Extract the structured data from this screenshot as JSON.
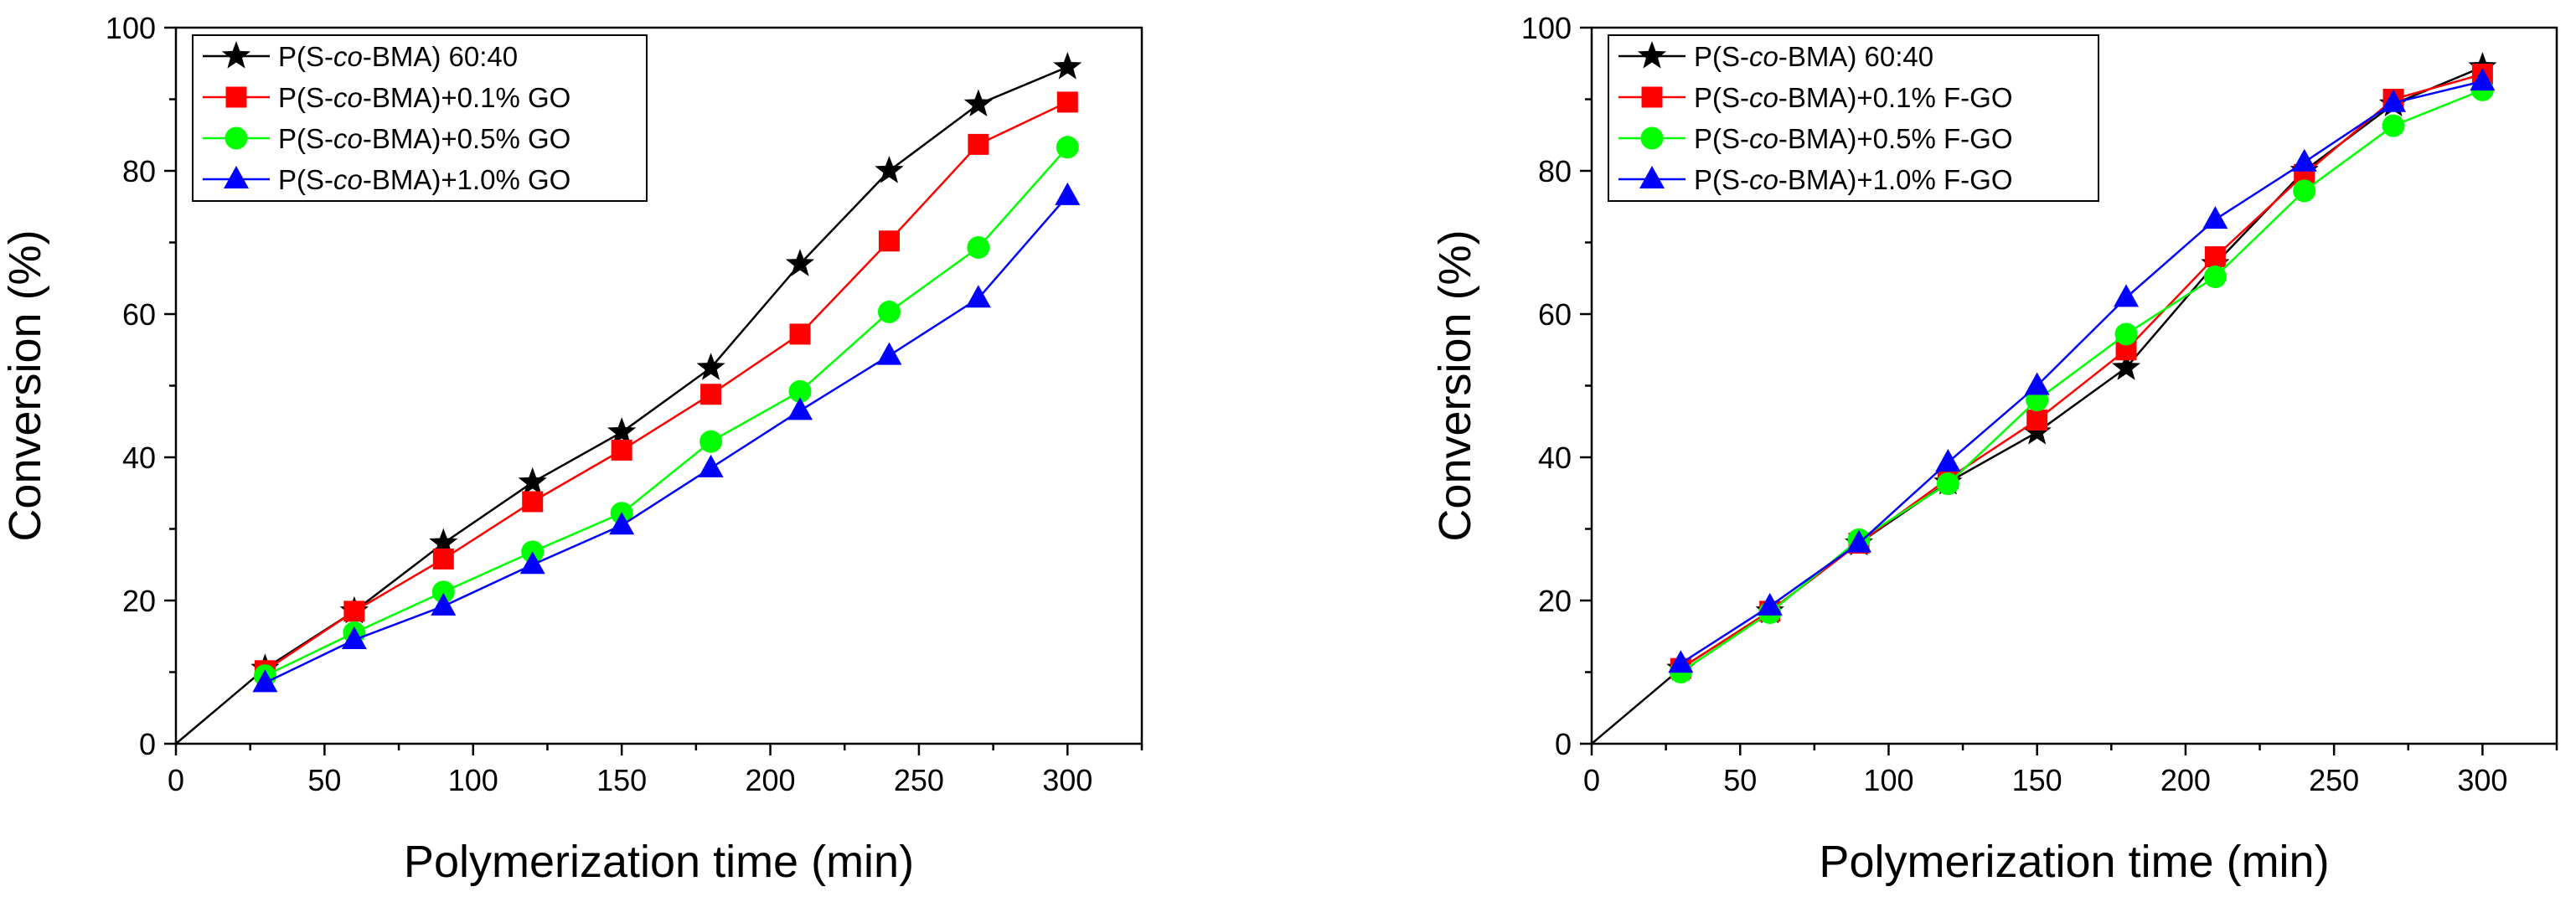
{
  "chart_data": [
    {
      "type": "line",
      "title": "",
      "xlabel": "Polymerization time (min)",
      "ylabel": "Conversion (%)",
      "xlim": [
        0,
        325
      ],
      "ylim": [
        0,
        100
      ],
      "xticks": [
        0,
        50,
        100,
        150,
        200,
        250,
        300
      ],
      "xtick_labels": [
        "0",
        "50",
        "100",
        "150",
        "200",
        "250",
        "300"
      ],
      "yticks": [
        0,
        20,
        40,
        60,
        80,
        100
      ],
      "ytick_labels": [
        "0",
        "20",
        "40",
        "60",
        "80",
        "100"
      ],
      "grid": false,
      "legend_position": "top-left",
      "series": [
        {
          "name": "P(S-co-BMA) 60:40",
          "legend": {
            "prefix": "P(S-",
            "italic": "co",
            "suffix": "-BMA) 60:40"
          },
          "color": "#000000",
          "marker": "star",
          "x": [
            0,
            30,
            60,
            90,
            120,
            150,
            180,
            210,
            240,
            270,
            300
          ],
          "y": [
            0,
            10.5,
            18.5,
            28,
            36.5,
            43.5,
            52.5,
            67,
            80,
            89.3,
            94.5
          ]
        },
        {
          "name": "P(S-co-BMA)+0.1% GO",
          "legend": {
            "prefix": "P(S-",
            "italic": "co",
            "suffix": "-BMA)+0.1% GO"
          },
          "color": "#ff0000",
          "marker": "square",
          "x": [
            30,
            60,
            90,
            120,
            150,
            180,
            210,
            240,
            270,
            300
          ],
          "y": [
            10.2,
            18.5,
            25.8,
            33.8,
            41,
            48.8,
            57.2,
            70.2,
            83.7,
            89.6
          ]
        },
        {
          "name": "P(S-co-BMA)+0.5% GO",
          "legend": {
            "prefix": "P(S-",
            "italic": "co",
            "suffix": "-BMA)+0.5% GO"
          },
          "color": "#00ff00",
          "marker": "circle",
          "x": [
            30,
            60,
            90,
            120,
            150,
            180,
            210,
            240,
            270,
            300
          ],
          "y": [
            9.5,
            15.5,
            21.2,
            26.8,
            32.2,
            42.2,
            49.2,
            60.3,
            69.3,
            83.3
          ]
        },
        {
          "name": "P(S-co-BMA)+1.0% GO",
          "legend": {
            "prefix": "P(S-",
            "italic": "co",
            "suffix": "-BMA)+1.0% GO"
          },
          "color": "#0000ff",
          "marker": "triangle",
          "x": [
            30,
            60,
            90,
            120,
            150,
            180,
            210,
            240,
            270,
            300
          ],
          "y": [
            8.5,
            14.5,
            19.2,
            25,
            30.5,
            38.5,
            46.5,
            54.2,
            62.2,
            76.5
          ]
        }
      ]
    },
    {
      "type": "line",
      "title": "",
      "xlabel": "Polymerization time (min)",
      "ylabel": "Conversion (%)",
      "xlim": [
        0,
        325
      ],
      "ylim": [
        0,
        100
      ],
      "xticks": [
        0,
        50,
        100,
        150,
        200,
        250,
        300
      ],
      "xtick_labels": [
        "0",
        "50",
        "100",
        "150",
        "200",
        "250",
        "300"
      ],
      "yticks": [
        0,
        20,
        40,
        60,
        80,
        100
      ],
      "ytick_labels": [
        "0",
        "20",
        "40",
        "60",
        "80",
        "100"
      ],
      "grid": false,
      "legend_position": "top-left",
      "series": [
        {
          "name": "P(S-co-BMA) 60:40",
          "legend": {
            "prefix": "P(S-",
            "italic": "co",
            "suffix": "-BMA) 60:40"
          },
          "color": "#000000",
          "marker": "star",
          "x": [
            0,
            30,
            60,
            90,
            120,
            150,
            180,
            210,
            240,
            270,
            300
          ],
          "y": [
            0,
            10.5,
            18.5,
            28,
            36.5,
            43.5,
            52.5,
            67,
            80,
            89.3,
            94.5
          ]
        },
        {
          "name": "P(S-co-BMA)+0.1% F-GO",
          "legend": {
            "prefix": "P(S-",
            "italic": "co",
            "suffix": "-BMA)+0.1% F-GO"
          },
          "color": "#ff0000",
          "marker": "square",
          "x": [
            30,
            60,
            90,
            120,
            150,
            180,
            210,
            240,
            270,
            300
          ],
          "y": [
            10.5,
            18.5,
            28,
            37,
            45.2,
            55,
            68,
            79.5,
            90,
            93.5
          ]
        },
        {
          "name": "P(S-co-BMA)+0.5% F-GO",
          "legend": {
            "prefix": "P(S-",
            "italic": "co",
            "suffix": "-BMA)+0.5% F-GO"
          },
          "color": "#00ff00",
          "marker": "circle",
          "x": [
            30,
            60,
            90,
            120,
            150,
            180,
            210,
            240,
            270,
            300
          ],
          "y": [
            10,
            18.3,
            28.5,
            36.3,
            48,
            57.2,
            65.2,
            77.2,
            86.3,
            91.3
          ]
        },
        {
          "name": "P(S-co-BMA)+1.0% F-GO",
          "legend": {
            "prefix": "P(S-",
            "italic": "co",
            "suffix": "-BMA)+1.0% F-GO"
          },
          "color": "#0000ff",
          "marker": "triangle",
          "x": [
            30,
            60,
            90,
            120,
            150,
            180,
            210,
            240,
            270,
            300
          ],
          "y": [
            11.2,
            19.2,
            28,
            39.3,
            50,
            62.3,
            73.2,
            81.2,
            89.5,
            92.5
          ]
        }
      ]
    }
  ]
}
